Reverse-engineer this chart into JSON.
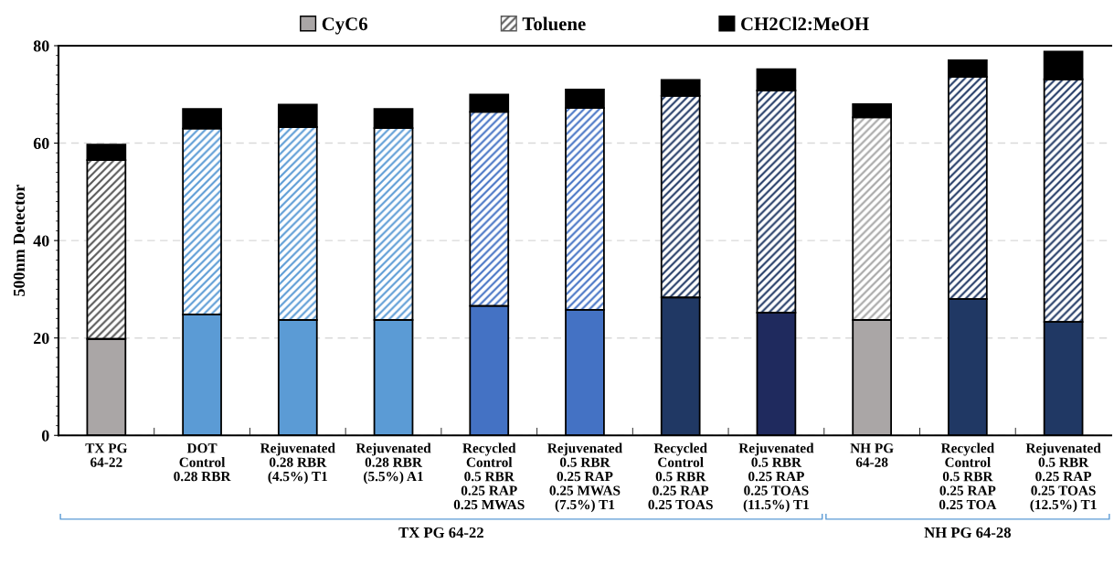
{
  "chart_data": {
    "type": "bar",
    "stacked": true,
    "ylabel": "500nm Detector",
    "categories": [
      "TX PG\n64-22",
      "DOT\nControl\n0.28 RBR",
      "Rejuvenated\n0.28 RBR\n(4.5%) T1",
      "Rejuvenated\n0.28 RBR\n(5.5%) A1",
      "Recycled\nControl\n0.5 RBR\n0.25 RAP\n0.25 MWAS",
      "Rejuvenated\n0.5 RBR\n0.25 RAP\n0.25 MWAS\n(7.5%) T1",
      "Recycled\nControl\n0.5 RBR\n0.25 RAP\n0.25 TOAS",
      "Rejuvenated\n0.5 RBR\n0.25 RAP\n0.25 TOAS\n(11.5%) T1",
      "NH PG\n64-28",
      "Recycled\nControl\n0.5 RBR\n0.25 RAP\n0.25 TOA",
      "Rejuvenated\n0.5 RBR\n0.25 RAP\n0.25 TOAS\n(12.5%) T1"
    ],
    "series": [
      {
        "name": "CyC6",
        "color": "#aaa6a6",
        "colors": [
          "#aaa6a6",
          "#5b9bd5",
          "#5b9bd5",
          "#5b9bd5",
          "#4472c4",
          "#4472c4",
          "#203864",
          "#1f2a5e",
          "#aaa6a6",
          "#203864",
          "#203864"
        ],
        "values": [
          19.8,
          24.8,
          23.7,
          23.7,
          26.6,
          25.8,
          28.3,
          25.2,
          23.7,
          28.0,
          23.3
        ]
      },
      {
        "name": "Toluene",
        "color": "#595959",
        "colors": [
          "#595959",
          "#5b9bd5",
          "#5b9bd5",
          "#5b9bd5",
          "#4472c4",
          "#4472c4",
          "#203864",
          "#203864",
          "#a6a6a6",
          "#203864",
          "#203864"
        ],
        "values": [
          36.7,
          38.2,
          39.6,
          39.4,
          39.8,
          41.4,
          41.4,
          45.6,
          41.6,
          45.6,
          49.8
        ]
      },
      {
        "name": "CH2Cl2:MeOH",
        "color": "#000000",
        "values": [
          3.2,
          4.0,
          4.6,
          3.9,
          3.6,
          3.8,
          3.3,
          4.4,
          2.7,
          3.4,
          5.7
        ]
      }
    ],
    "ylim": [
      0,
      80
    ],
    "yticks": [
      0,
      20,
      40,
      60,
      80
    ],
    "grid": "y",
    "legend": "top",
    "annotations": [
      "TX PG 64-22",
      "NH PG 64-28"
    ]
  }
}
